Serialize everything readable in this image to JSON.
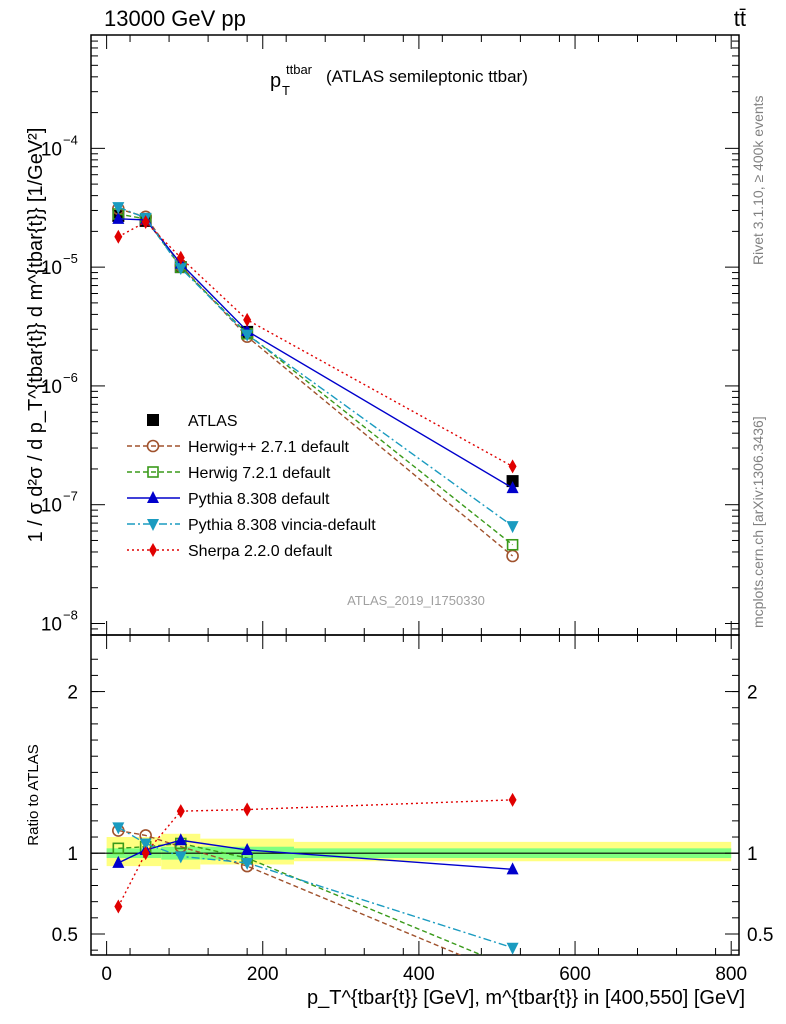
{
  "header": {
    "left": "13000 GeV pp",
    "right": "tt̄"
  },
  "side_labels": {
    "rivet": "Rivet 3.1.10, ≥ 400k events",
    "mcplots": "mcplots.cern.ch [arXiv:1306.3436]"
  },
  "chart_data": [
    {
      "type": "line",
      "title": "(ATLAS semileptonic ttbar)",
      "title_var": "p",
      "title_sub": "T",
      "title_sup": "ttbar",
      "ylabel": "1 / σ d²σ / d p_T^{tbar{t}} d m^{tbar{t}} [1/GeV²]",
      "y_scale": "log",
      "ylim": [
        8e-09,
        0.0009
      ],
      "xlim": [
        -20,
        810
      ],
      "y_ticks": [
        {
          "value": 1e-08,
          "label": "10",
          "exp": "−8"
        },
        {
          "value": 1e-07,
          "label": "10",
          "exp": "−7"
        },
        {
          "value": 1e-06,
          "label": "10",
          "exp": "−6"
        },
        {
          "value": 1e-05,
          "label": "10",
          "exp": "−5"
        },
        {
          "value": 0.0001,
          "label": "10",
          "exp": "−4"
        }
      ],
      "watermark": "ATLAS_2019_I1750330",
      "legend_position": "center-left",
      "series": [
        {
          "name": "ATLAS",
          "color": "#000000",
          "marker": "square-filled",
          "dash": "none",
          "x": [
            15,
            50,
            95,
            180,
            520
          ],
          "y": [
            2.7e-05,
            2.45e-05,
            1e-05,
            2.85e-06,
            1.58e-07
          ]
        },
        {
          "name": "Herwig++ 2.7.1 default",
          "color": "#a0522d",
          "marker": "circle-open",
          "dash": "5,3",
          "x": [
            15,
            50,
            95,
            180,
            520
          ],
          "y": [
            3.1e-05,
            2.65e-05,
            1.03e-05,
            2.6e-06,
            3.7e-08
          ]
        },
        {
          "name": "Herwig 7.2.1 default",
          "color": "#3a9a1a",
          "marker": "square-open",
          "dash": "5,3",
          "x": [
            15,
            50,
            95,
            180,
            520
          ],
          "y": [
            2.8e-05,
            2.55e-05,
            1e-05,
            2.75e-06,
            4.6e-08
          ]
        },
        {
          "name": "Pythia 8.308 default",
          "color": "#0000cc",
          "marker": "triangle-up",
          "dash": "none",
          "x": [
            15,
            50,
            95,
            180,
            520
          ],
          "y": [
            2.55e-05,
            2.5e-05,
            1.07e-05,
            2.9e-06,
            1.38e-07
          ]
        },
        {
          "name": "Pythia 8.308 vincia-default",
          "color": "#1a9bc0",
          "marker": "triangle-down",
          "dash": "8,3,2,3",
          "x": [
            15,
            50,
            95,
            180,
            520
          ],
          "y": [
            3.2e-05,
            2.6e-05,
            9.8e-06,
            2.7e-06,
            6.6e-08
          ]
        },
        {
          "name": "Sherpa 2.2.0 default",
          "color": "#e00000",
          "marker": "diamond",
          "dash": "2,3",
          "x": [
            15,
            50,
            95,
            180,
            520
          ],
          "y": [
            1.8e-05,
            2.4e-05,
            1.2e-05,
            3.6e-06,
            2.1e-07
          ]
        }
      ]
    },
    {
      "type": "line",
      "ylabel": "Ratio to ATLAS",
      "xlabel": "p_T^{tbar{t}} [GeV], m^{tbar{t}} in [400,550] [GeV]",
      "ylim": [
        0.37,
        2.35
      ],
      "xlim": [
        -20,
        810
      ],
      "y_ticks": [
        0.5,
        1,
        2
      ],
      "x_ticks": [
        0,
        200,
        400,
        600,
        800
      ],
      "reference_line": 1,
      "uncertainty_bands": [
        {
          "x0": 0,
          "x1": 70,
          "stat": [
            0.97,
            1.03
          ],
          "total": [
            0.92,
            1.1
          ]
        },
        {
          "x0": 70,
          "x1": 120,
          "stat": [
            0.96,
            1.04
          ],
          "total": [
            0.9,
            1.12
          ]
        },
        {
          "x0": 120,
          "x1": 240,
          "stat": [
            0.96,
            1.04
          ],
          "total": [
            0.93,
            1.09
          ]
        },
        {
          "x0": 240,
          "x1": 800,
          "stat": [
            0.97,
            1.03
          ],
          "total": [
            0.95,
            1.07
          ]
        }
      ],
      "series": [
        {
          "name": "Herwig++ 2.7.1 default",
          "x": [
            15,
            50,
            95,
            180,
            520
          ],
          "y": [
            1.14,
            1.11,
            1.04,
            0.92,
            0.235
          ]
        },
        {
          "name": "Herwig 7.2.1 default",
          "x": [
            15,
            50,
            95,
            180,
            520
          ],
          "y": [
            1.03,
            1.04,
            1.06,
            0.97,
            0.29
          ]
        },
        {
          "name": "Pythia 8.308 default",
          "x": [
            15,
            50,
            95,
            180,
            520
          ],
          "y": [
            0.94,
            1.02,
            1.08,
            1.02,
            0.9
          ]
        },
        {
          "name": "Pythia 8.308 vincia-default",
          "x": [
            15,
            50,
            95,
            180,
            520
          ],
          "y": [
            1.16,
            1.06,
            0.98,
            0.94,
            0.415
          ]
        },
        {
          "name": "Sherpa 2.2.0 default",
          "x": [
            15,
            50,
            95,
            180,
            520
          ],
          "y": [
            0.67,
            1.0,
            1.26,
            1.27,
            1.33
          ]
        }
      ]
    }
  ]
}
